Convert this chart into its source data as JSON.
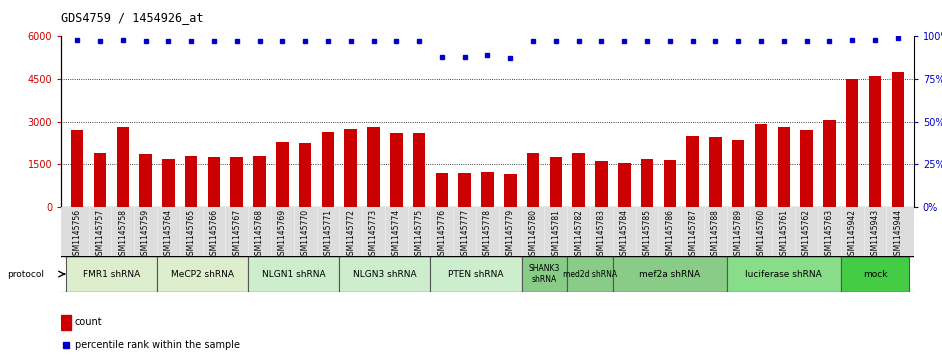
{
  "title": "GDS4759 / 1454926_at",
  "samples": [
    "GSM1145756",
    "GSM1145757",
    "GSM1145758",
    "GSM1145759",
    "GSM1145764",
    "GSM1145765",
    "GSM1145766",
    "GSM1145767",
    "GSM1145768",
    "GSM1145769",
    "GSM1145770",
    "GSM1145771",
    "GSM1145772",
    "GSM1145773",
    "GSM1145774",
    "GSM1145775",
    "GSM1145776",
    "GSM1145777",
    "GSM1145778",
    "GSM1145779",
    "GSM1145780",
    "GSM1145781",
    "GSM1145782",
    "GSM1145783",
    "GSM1145784",
    "GSM1145785",
    "GSM1145786",
    "GSM1145787",
    "GSM1145788",
    "GSM1145789",
    "GSM1145760",
    "GSM1145761",
    "GSM1145762",
    "GSM1145763",
    "GSM1145942",
    "GSM1145943",
    "GSM1145944"
  ],
  "counts": [
    2700,
    1900,
    2800,
    1850,
    1700,
    1800,
    1750,
    1750,
    1800,
    2300,
    2250,
    2650,
    2750,
    2800,
    2600,
    2600,
    1200,
    1180,
    1230,
    1150,
    1900,
    1750,
    1900,
    1600,
    1550,
    1700,
    1650,
    2500,
    2450,
    2350,
    2900,
    2800,
    2700,
    3050,
    4500,
    4600,
    4750
  ],
  "percentiles": [
    98,
    97,
    98,
    97,
    97,
    97,
    97,
    97,
    97,
    97,
    97,
    97,
    97,
    97,
    97,
    97,
    88,
    88,
    89,
    87,
    97,
    97,
    97,
    97,
    97,
    97,
    97,
    97,
    97,
    97,
    97,
    97,
    97,
    97,
    98,
    98,
    99
  ],
  "bar_color": "#cc0000",
  "dot_color": "#0000cc",
  "ylim_left": [
    0,
    6000
  ],
  "ylim_right": [
    0,
    100
  ],
  "yticks_left": [
    0,
    1500,
    3000,
    4500,
    6000
  ],
  "yticks_right": [
    0,
    25,
    50,
    75,
    100
  ],
  "protocol_groups": [
    {
      "label": "FMR1 shRNA",
      "start": 0,
      "end": 3,
      "color": "#ddeecc"
    },
    {
      "label": "MeCP2 shRNA",
      "start": 4,
      "end": 7,
      "color": "#ddeecc"
    },
    {
      "label": "NLGN1 shRNA",
      "start": 8,
      "end": 11,
      "color": "#cceecc"
    },
    {
      "label": "NLGN3 shRNA",
      "start": 12,
      "end": 15,
      "color": "#cceecc"
    },
    {
      "label": "PTEN shRNA",
      "start": 16,
      "end": 19,
      "color": "#cceecc"
    },
    {
      "label": "SHANK3\nshRNA",
      "start": 20,
      "end": 21,
      "color": "#88cc88"
    },
    {
      "label": "med2d shRNA",
      "start": 22,
      "end": 23,
      "color": "#88cc88"
    },
    {
      "label": "mef2a shRNA",
      "start": 24,
      "end": 28,
      "color": "#88cc88"
    },
    {
      "label": "luciferase shRNA",
      "start": 29,
      "end": 33,
      "color": "#88dd88"
    },
    {
      "label": "mock",
      "start": 34,
      "end": 36,
      "color": "#44cc44"
    }
  ]
}
